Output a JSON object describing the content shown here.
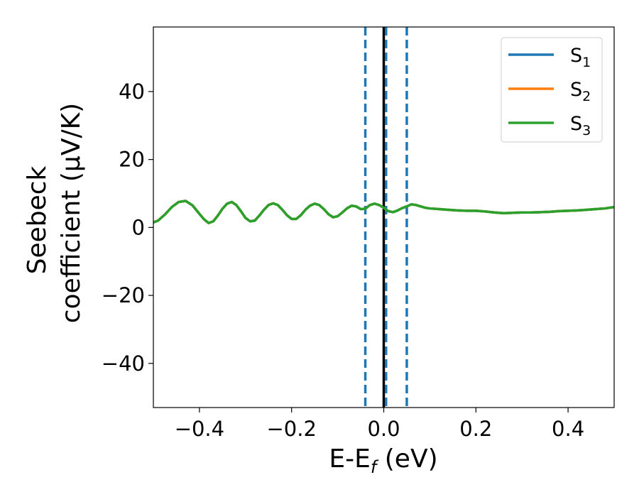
{
  "chart_data": {
    "type": "line",
    "xlabel_main": "E-E",
    "xlabel_sub": "f",
    "xlabel_unit": " (eV)",
    "ylabel_line1": "Seebeck",
    "ylabel_line2": "coefficient  (μV/K)",
    "xlim": [
      -0.5,
      0.5
    ],
    "ylim": [
      -53,
      59
    ],
    "xticks": [
      -0.4,
      -0.2,
      0.0,
      0.2,
      0.4
    ],
    "xtick_labels": [
      "−0.4",
      "−0.2",
      "0.0",
      "0.2",
      "0.4"
    ],
    "yticks": [
      -40,
      -20,
      0,
      20,
      40
    ],
    "ytick_labels": [
      "−40",
      "−20",
      "0",
      "20",
      "40"
    ],
    "grid": false,
    "legend_position": "top-right",
    "colors": {
      "s1": "#1f77b4",
      "s2": "#ff7f0e",
      "s3": "#2ca02c",
      "fermi_line": "#000000",
      "dashed": "#1f77b4"
    },
    "vertical_lines": [
      {
        "x": -0.04,
        "style": "dashed",
        "color": "#1f77b4"
      },
      {
        "x": 0.0,
        "style": "solid",
        "color": "#000000"
      },
      {
        "x": 0.005,
        "style": "dashed",
        "color": "#1f77b4"
      },
      {
        "x": 0.05,
        "style": "dashed",
        "color": "#1f77b4"
      }
    ],
    "series": [
      {
        "name": "S",
        "sub": "1",
        "color": "#1f77b4",
        "x": [
          -0.5,
          -0.49,
          -0.475,
          -0.46,
          -0.445,
          -0.43,
          -0.415,
          -0.4,
          -0.39,
          -0.38,
          -0.37,
          -0.36,
          -0.35,
          -0.34,
          -0.33,
          -0.32,
          -0.31,
          -0.3,
          -0.29,
          -0.28,
          -0.27,
          -0.26,
          -0.25,
          -0.24,
          -0.23,
          -0.22,
          -0.21,
          -0.2,
          -0.19,
          -0.18,
          -0.17,
          -0.16,
          -0.15,
          -0.14,
          -0.13,
          -0.12,
          -0.11,
          -0.1,
          -0.09,
          -0.08,
          -0.07,
          -0.06,
          -0.05,
          -0.04,
          -0.03,
          -0.02,
          -0.01,
          0.0,
          0.01,
          0.02,
          0.03,
          0.04,
          0.05,
          0.06,
          0.07,
          0.08,
          0.09,
          0.1,
          0.12,
          0.14,
          0.16,
          0.18,
          0.2,
          0.22,
          0.24,
          0.26,
          0.28,
          0.3,
          0.32,
          0.34,
          0.36,
          0.38,
          0.4,
          0.42,
          0.44,
          0.46,
          0.48,
          0.5
        ],
        "y": [
          1.5,
          2.0,
          3.8,
          6.0,
          7.5,
          7.8,
          6.5,
          4.0,
          2.4,
          1.3,
          1.8,
          3.5,
          5.5,
          7.0,
          7.5,
          6.6,
          4.8,
          2.8,
          1.8,
          2.0,
          3.5,
          5.2,
          6.6,
          7.1,
          6.6,
          5.2,
          3.6,
          2.5,
          2.5,
          3.6,
          5.2,
          6.4,
          7.0,
          6.6,
          5.4,
          3.9,
          3.0,
          3.3,
          4.4,
          5.6,
          6.4,
          6.2,
          5.4,
          5.5,
          6.6,
          7.0,
          6.6,
          5.8,
          4.8,
          4.5,
          5.0,
          5.7,
          6.2,
          6.8,
          6.6,
          6.2,
          5.8,
          5.6,
          5.4,
          5.2,
          5.0,
          4.9,
          4.9,
          4.7,
          4.4,
          4.2,
          4.3,
          4.4,
          4.4,
          4.5,
          4.6,
          4.8,
          4.9,
          5.0,
          5.2,
          5.4,
          5.6,
          6.0
        ]
      },
      {
        "name": "S",
        "sub": "2",
        "color": "#ff7f0e",
        "x": [
          -0.5,
          -0.49,
          -0.475,
          -0.46,
          -0.445,
          -0.43,
          -0.415,
          -0.4,
          -0.39,
          -0.38,
          -0.37,
          -0.36,
          -0.35,
          -0.34,
          -0.33,
          -0.32,
          -0.31,
          -0.3,
          -0.29,
          -0.28,
          -0.27,
          -0.26,
          -0.25,
          -0.24,
          -0.23,
          -0.22,
          -0.21,
          -0.2,
          -0.19,
          -0.18,
          -0.17,
          -0.16,
          -0.15,
          -0.14,
          -0.13,
          -0.12,
          -0.11,
          -0.1,
          -0.09,
          -0.08,
          -0.07,
          -0.06,
          -0.05,
          -0.04,
          -0.03,
          -0.02,
          -0.01,
          0.0,
          0.01,
          0.02,
          0.03,
          0.04,
          0.05,
          0.06,
          0.07,
          0.08,
          0.09,
          0.1,
          0.12,
          0.14,
          0.16,
          0.18,
          0.2,
          0.22,
          0.24,
          0.26,
          0.28,
          0.3,
          0.32,
          0.34,
          0.36,
          0.38,
          0.4,
          0.42,
          0.44,
          0.46,
          0.48,
          0.5
        ],
        "y": [
          1.5,
          2.0,
          3.8,
          6.0,
          7.5,
          7.8,
          6.5,
          4.0,
          2.4,
          1.3,
          1.8,
          3.5,
          5.5,
          7.0,
          7.5,
          6.6,
          4.8,
          2.8,
          1.8,
          2.0,
          3.5,
          5.2,
          6.6,
          7.1,
          6.6,
          5.2,
          3.6,
          2.5,
          2.5,
          3.6,
          5.2,
          6.4,
          7.0,
          6.6,
          5.4,
          3.9,
          3.0,
          3.3,
          4.4,
          5.6,
          6.4,
          6.2,
          5.4,
          5.5,
          6.6,
          7.0,
          6.6,
          5.8,
          4.8,
          4.5,
          5.0,
          5.7,
          6.2,
          6.8,
          6.6,
          6.2,
          5.8,
          5.6,
          5.4,
          5.2,
          5.0,
          4.9,
          4.9,
          4.7,
          4.4,
          4.2,
          4.3,
          4.4,
          4.4,
          4.5,
          4.6,
          4.8,
          4.9,
          5.0,
          5.2,
          5.4,
          5.6,
          6.0
        ]
      },
      {
        "name": "S",
        "sub": "3",
        "color": "#2ca02c",
        "x": [
          -0.5,
          -0.49,
          -0.475,
          -0.46,
          -0.445,
          -0.43,
          -0.415,
          -0.4,
          -0.39,
          -0.38,
          -0.37,
          -0.36,
          -0.35,
          -0.34,
          -0.33,
          -0.32,
          -0.31,
          -0.3,
          -0.29,
          -0.28,
          -0.27,
          -0.26,
          -0.25,
          -0.24,
          -0.23,
          -0.22,
          -0.21,
          -0.2,
          -0.19,
          -0.18,
          -0.17,
          -0.16,
          -0.15,
          -0.14,
          -0.13,
          -0.12,
          -0.11,
          -0.1,
          -0.09,
          -0.08,
          -0.07,
          -0.06,
          -0.05,
          -0.04,
          -0.03,
          -0.02,
          -0.01,
          0.0,
          0.01,
          0.02,
          0.03,
          0.04,
          0.05,
          0.06,
          0.07,
          0.08,
          0.09,
          0.1,
          0.12,
          0.14,
          0.16,
          0.18,
          0.2,
          0.22,
          0.24,
          0.26,
          0.28,
          0.3,
          0.32,
          0.34,
          0.36,
          0.38,
          0.4,
          0.42,
          0.44,
          0.46,
          0.48,
          0.5
        ],
        "y": [
          1.5,
          2.0,
          3.8,
          6.0,
          7.5,
          7.8,
          6.5,
          4.0,
          2.4,
          1.3,
          1.8,
          3.5,
          5.5,
          7.0,
          7.5,
          6.6,
          4.8,
          2.8,
          1.8,
          2.0,
          3.5,
          5.2,
          6.6,
          7.1,
          6.6,
          5.2,
          3.6,
          2.5,
          2.5,
          3.6,
          5.2,
          6.4,
          7.0,
          6.6,
          5.4,
          3.9,
          3.0,
          3.3,
          4.4,
          5.6,
          6.4,
          6.2,
          5.4,
          5.5,
          6.6,
          7.0,
          6.6,
          5.8,
          4.8,
          4.5,
          5.0,
          5.7,
          6.2,
          6.8,
          6.6,
          6.2,
          5.8,
          5.6,
          5.4,
          5.2,
          5.0,
          4.9,
          4.9,
          4.7,
          4.4,
          4.2,
          4.3,
          4.4,
          4.4,
          4.5,
          4.6,
          4.8,
          4.9,
          5.0,
          5.2,
          5.4,
          5.6,
          6.0
        ]
      }
    ]
  }
}
